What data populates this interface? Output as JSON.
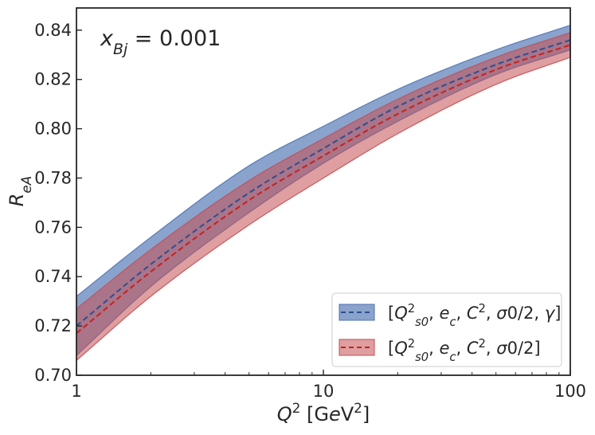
{
  "chart_data": {
    "type": "line",
    "xscale": "log",
    "xlim": [
      1,
      100
    ],
    "ylim": [
      0.7,
      0.849
    ],
    "x_ticks": [
      1,
      10,
      100
    ],
    "x_tick_labels": [
      "1",
      "10",
      "100"
    ],
    "y_ticks": [
      0.7,
      0.72,
      0.74,
      0.76,
      0.78,
      0.8,
      0.82,
      0.84
    ],
    "y_tick_labels": [
      "0.70",
      "0.72",
      "0.74",
      "0.76",
      "0.78",
      "0.80",
      "0.82",
      "0.84"
    ],
    "xlabel": "Q² [GeV²]",
    "ylabel": "R_eA",
    "annotation": "x_Bj = 0.001",
    "grid": false,
    "legend_position": "lower-right",
    "series": [
      {
        "name": "[Q²_s0, e_c, C², σ0/2, γ]",
        "color": "#4c72b0",
        "x": [
          1,
          2,
          5,
          10,
          20,
          50,
          100
        ],
        "center": [
          0.72,
          0.745,
          0.774,
          0.792,
          0.809,
          0.826,
          0.836
        ],
        "lower": [
          0.708,
          0.736,
          0.766,
          0.786,
          0.803,
          0.822,
          0.832
        ],
        "upper": [
          0.732,
          0.756,
          0.785,
          0.801,
          0.816,
          0.832,
          0.842
        ]
      },
      {
        "name": "[Q²_s0, e_c, C², σ0/2]",
        "color": "#c44e52",
        "x": [
          1,
          2,
          5,
          10,
          20,
          50,
          100
        ],
        "center": [
          0.717,
          0.742,
          0.771,
          0.789,
          0.806,
          0.824,
          0.834
        ],
        "lower": [
          0.706,
          0.732,
          0.761,
          0.78,
          0.798,
          0.818,
          0.829
        ],
        "upper": [
          0.727,
          0.751,
          0.779,
          0.796,
          0.812,
          0.829,
          0.839
        ]
      }
    ]
  }
}
